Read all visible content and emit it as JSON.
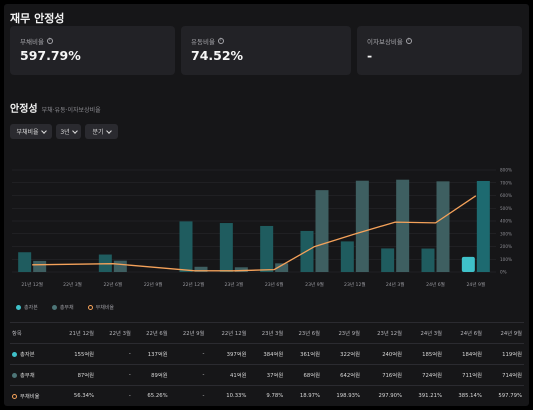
{
  "page_title": "재무 안정성",
  "cards": [
    {
      "label": "부채비율",
      "value": "597.79%"
    },
    {
      "label": "유동비율",
      "value": "74.52%"
    },
    {
      "label": "이자보상비율",
      "value": "-"
    }
  ],
  "section": {
    "title": "안정성",
    "subtitle": "부채·유동·이자보상비율"
  },
  "filters": {
    "metric": "부채비율",
    "period": "3년",
    "interval": "분기"
  },
  "colors": {
    "equity": "#1f5c5f",
    "debt": "#3e5f61",
    "ratio": "#f5a25a",
    "highlight": "#3fc1c9"
  },
  "chart_data": {
    "type": "bar",
    "categories": [
      "21년 12월",
      "22년 3월",
      "22년 6월",
      "22년 9월",
      "22년 12월",
      "23년 3월",
      "23년 6월",
      "23년 9월",
      "23년 12월",
      "24년 3월",
      "24년 6월",
      "24년 9월"
    ],
    "series": [
      {
        "name": "총자본",
        "values": [
          155,
          0,
          137,
          0,
          397,
          384,
          361,
          322,
          240,
          185,
          184,
          119
        ],
        "unit": "억원"
      },
      {
        "name": "총부채",
        "values": [
          87,
          0,
          89,
          0,
          41,
          37,
          68,
          642,
          716,
          724,
          711,
          714
        ],
        "unit": "억원"
      },
      {
        "name": "부채비율",
        "values": [
          56.34,
          null,
          65.26,
          null,
          10.33,
          9.78,
          18.97,
          198.93,
          297.9,
          391.21,
          385.14,
          597.79
        ],
        "unit": "%"
      }
    ],
    "y2_ticks": [
      "0%",
      "100%",
      "200%",
      "300%",
      "400%",
      "500%",
      "600%",
      "700%",
      "800%"
    ],
    "y2lim": [
      0,
      800
    ],
    "ylim": [
      0,
      800
    ],
    "highlight_index": 11,
    "legend": [
      "총자본",
      "총부채",
      "부채비율"
    ],
    "legend_position": "bottom-left"
  },
  "table": {
    "header_label": "항목",
    "columns": [
      "21년 12월",
      "22년 3월",
      "22년 6월",
      "22년 9월",
      "22년 12월",
      "23년 3월",
      "23년 6월",
      "23년 9월",
      "23년 12월",
      "24년 3월",
      "24년 6월",
      "24년 9월"
    ],
    "rows": [
      {
        "label": "총자본",
        "cells": [
          "155억원",
          "-",
          "137억원",
          "-",
          "397억원",
          "384억원",
          "361억원",
          "322억원",
          "240억원",
          "185억원",
          "184억원",
          "119억원"
        ]
      },
      {
        "label": "총부채",
        "cells": [
          "87억원",
          "-",
          "89억원",
          "-",
          "41억원",
          "37억원",
          "68억원",
          "642억원",
          "716억원",
          "724억원",
          "711억원",
          "714억원"
        ]
      },
      {
        "label": "부채비율",
        "cells": [
          "56.34%",
          "-",
          "65.26%",
          "-",
          "10.33%",
          "9.78%",
          "18.97%",
          "198.93%",
          "297.90%",
          "391.21%",
          "385.14%",
          "597.79%"
        ]
      }
    ]
  }
}
